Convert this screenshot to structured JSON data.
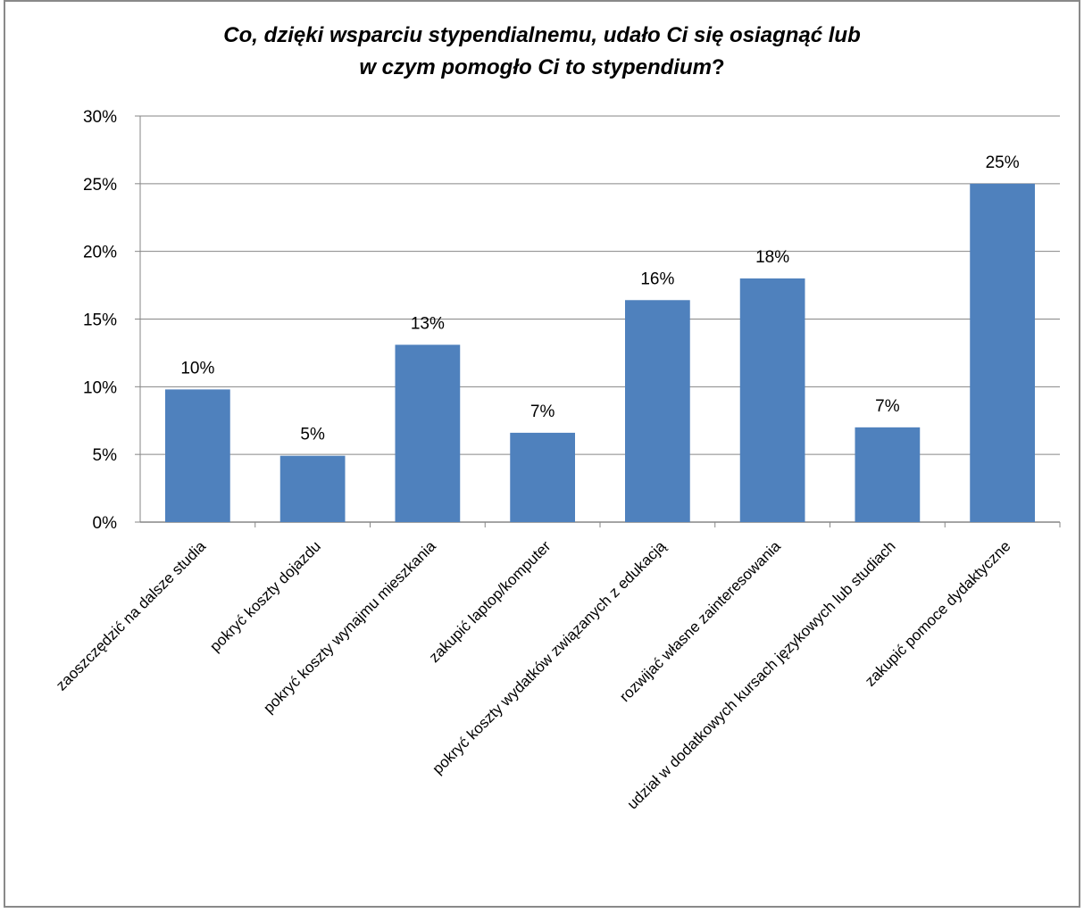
{
  "chart_data": {
    "type": "bar",
    "title_line1": "Co, dzięki wsparciu stypendialnemu, udało Ci się osiagnąć lub",
    "title_line2_italic": "w czym pomogło Ci to stypendium",
    "title_line2_end": "?",
    "categories": [
      "zaoszczędzić na dalsze studia",
      "pokryć koszty dojazdu",
      "pokryć koszty wynajmu mieszkania",
      "zakupić laptop/komputer",
      "pokryć koszty wydatków związanych z edukacją",
      "rozwijać własne zainteresowania",
      "udział w dodatkowych kursach językowych lub studiach",
      "zakupić pomoce dydaktyczne"
    ],
    "values": [
      9.8,
      4.9,
      13.1,
      6.6,
      16.4,
      18.0,
      7.0,
      25.0
    ],
    "data_labels": [
      "10%",
      "5%",
      "13%",
      "7%",
      "16%",
      "18%",
      "7%",
      "25%"
    ],
    "ylim": [
      0,
      30
    ],
    "yticks": [
      "0%",
      "5%",
      "10%",
      "15%",
      "20%",
      "25%",
      "30%"
    ],
    "ytick_values": [
      0,
      5,
      10,
      15,
      20,
      25,
      30
    ],
    "grid": true,
    "legend": "none",
    "colors": {
      "bar": "#4F81BD",
      "grid": "#868686",
      "axis": "#868686"
    }
  }
}
